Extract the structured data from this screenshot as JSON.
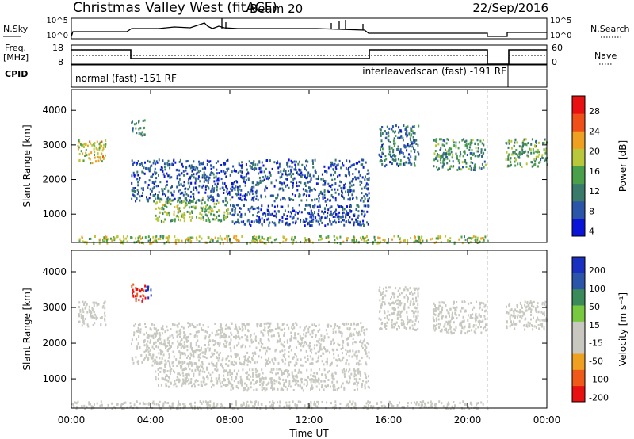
{
  "header": {
    "title": "Christmas Valley West (fitACF)",
    "beam": "Beam 20",
    "date": "22/Sep/2016"
  },
  "strip_labels": {
    "nsky": "N.Sky",
    "nsearch": "N.Search",
    "freq": "Freq.",
    "freq_unit": "[MHz]",
    "nave": "Nave",
    "cpid": "CPID",
    "nsky_ticks": [
      "10^5",
      "10^0"
    ],
    "freq_ticks": [
      "18",
      "8"
    ],
    "nave_ticks": [
      "60",
      "0"
    ],
    "cpid_left": "normal (fast) -151 RF",
    "cpid_right": "interleavedscan (fast) -191 RF"
  },
  "colors": {
    "power": [
      "#0a14d8",
      "#2a55a8",
      "#3a7a6a",
      "#4aa04a",
      "#b8c83a",
      "#f0a020",
      "#f05018",
      "#e81010"
    ],
    "velocity": [
      "#e81010",
      "#f05a18",
      "#f0a020",
      "#c8c8c0",
      "#c8c8c0",
      "#78c840",
      "#3a8a5a",
      "#2a55a8",
      "#1a30c0"
    ]
  },
  "chart_data": [
    {
      "type": "heatmap",
      "name": "power",
      "ylabel": "Slant Range [km]",
      "xlabel": "Time UT",
      "x_ticks": [
        "00:00",
        "04:00",
        "08:00",
        "12:00",
        "16:00",
        "20:00",
        "00:00"
      ],
      "xlim_hours": [
        0,
        24
      ],
      "y_ticks": [
        "1000",
        "2000",
        "3000",
        "4000"
      ],
      "ylim_km": [
        180,
        4600
      ],
      "data_gap_hours": [
        21,
        21.9
      ],
      "colorbar": {
        "label": "Power [dB]",
        "ticks": [
          "28",
          "24",
          "20",
          "16",
          "12",
          "8",
          "4"
        ],
        "range": [
          0,
          30
        ]
      },
      "regions": [
        {
          "t": [
            0.3,
            1.7
          ],
          "r": [
            2500,
            3200
          ],
          "value": 18
        },
        {
          "t": [
            3.0,
            3.7
          ],
          "r": [
            3300,
            3750
          ],
          "value": 10
        },
        {
          "t": [
            4.2,
            8.0
          ],
          "r": [
            800,
            1500
          ],
          "value": 14
        },
        {
          "t": [
            3.0,
            15.0
          ],
          "r": [
            1400,
            2600
          ],
          "value": 6
        },
        {
          "t": [
            15.5,
            17.5
          ],
          "r": [
            2400,
            3600
          ],
          "value": 8
        },
        {
          "t": [
            18.2,
            20.9
          ],
          "r": [
            2300,
            3200
          ],
          "value": 11
        },
        {
          "t": [
            21.9,
            24.0
          ],
          "r": [
            2400,
            3200
          ],
          "value": 12
        },
        {
          "t": [
            8.0,
            15.0
          ],
          "r": [
            700,
            1300
          ],
          "value": 5
        },
        {
          "t": [
            0.0,
            21.0
          ],
          "r": [
            180,
            400
          ],
          "value": 16
        }
      ]
    },
    {
      "type": "heatmap",
      "name": "velocity",
      "ylabel": "Slant Range [km]",
      "xlabel": "Time UT",
      "x_ticks": [
        "00:00",
        "04:00",
        "08:00",
        "12:00",
        "16:00",
        "20:00",
        "00:00"
      ],
      "xlim_hours": [
        0,
        24
      ],
      "y_ticks": [
        "1000",
        "2000",
        "3000",
        "4000"
      ],
      "ylim_km": [
        180,
        4600
      ],
      "data_gap_hours": [
        21,
        21.9
      ],
      "colorbar": {
        "label": "Velocity [m s⁻¹]",
        "ticks": [
          "200",
          "100",
          "50",
          "15",
          "-15",
          "-50",
          "-100",
          "-200"
        ],
        "range": [
          -250,
          250
        ]
      },
      "regions": [
        {
          "t": [
            0.3,
            1.7
          ],
          "r": [
            2500,
            3200
          ],
          "value": 0
        },
        {
          "t": [
            3.0,
            3.7
          ],
          "r": [
            3200,
            3700
          ],
          "value": -200
        },
        {
          "t": [
            3.7,
            4.0
          ],
          "r": [
            3300,
            3700
          ],
          "value": 200
        },
        {
          "t": [
            4.2,
            8.0
          ],
          "r": [
            800,
            1500
          ],
          "value": -40
        },
        {
          "t": [
            3.0,
            15.0
          ],
          "r": [
            1400,
            2600
          ],
          "value": 0
        },
        {
          "t": [
            15.5,
            17.5
          ],
          "r": [
            2400,
            3600
          ],
          "value": 0
        },
        {
          "t": [
            18.2,
            20.9
          ],
          "r": [
            2300,
            3200
          ],
          "value": 0
        },
        {
          "t": [
            21.9,
            24.0
          ],
          "r": [
            2400,
            3200
          ],
          "value": 0
        },
        {
          "t": [
            8.0,
            15.0
          ],
          "r": [
            700,
            1300
          ],
          "value": -40
        },
        {
          "t": [
            0.0,
            21.0
          ],
          "r": [
            180,
            400
          ],
          "value": -40
        }
      ]
    }
  ]
}
